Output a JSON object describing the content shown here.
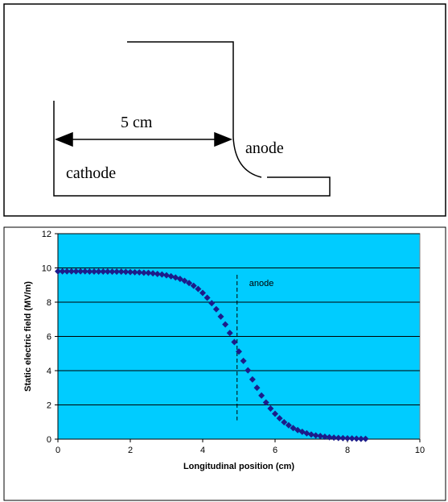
{
  "diagram": {
    "labels": {
      "distance": "5 cm",
      "anode": "anode",
      "cathode": "cathode"
    }
  },
  "chart_data": {
    "type": "scatter",
    "x_label": "Longitudinal position (cm)",
    "y_label": "Static electric field (MV/m)",
    "annotation": {
      "text": "anode",
      "x": 4.95,
      "y_range": [
        1.1,
        9.6
      ]
    },
    "x": [
      0,
      0.125,
      0.25,
      0.375,
      0.5,
      0.625,
      0.75,
      0.875,
      1,
      1.125,
      1.25,
      1.375,
      1.5,
      1.625,
      1.75,
      1.875,
      2,
      2.125,
      2.25,
      2.375,
      2.5,
      2.625,
      2.75,
      2.875,
      3,
      3.125,
      3.25,
      3.375,
      3.5,
      3.625,
      3.75,
      3.875,
      4,
      4.125,
      4.25,
      4.375,
      4.5,
      4.625,
      4.75,
      4.875,
      5,
      5.125,
      5.25,
      5.375,
      5.5,
      5.625,
      5.75,
      5.875,
      6,
      6.125,
      6.25,
      6.375,
      6.5,
      6.625,
      6.75,
      6.875,
      7,
      7.125,
      7.25,
      7.375,
      7.5,
      7.625,
      7.75,
      7.875,
      8,
      8.125,
      8.25,
      8.375,
      8.5
    ],
    "values": [
      9.8,
      9.8,
      9.8,
      9.8,
      9.8,
      9.8,
      9.8,
      9.79,
      9.79,
      9.79,
      9.79,
      9.79,
      9.78,
      9.78,
      9.78,
      9.77,
      9.76,
      9.75,
      9.74,
      9.72,
      9.71,
      9.68,
      9.65,
      9.62,
      9.57,
      9.51,
      9.44,
      9.36,
      9.25,
      9.12,
      8.96,
      8.77,
      8.54,
      8.26,
      7.94,
      7.59,
      7.16,
      6.7,
      6.2,
      5.67,
      5.12,
      4.57,
      4.02,
      3.49,
      3.0,
      2.55,
      2.14,
      1.79,
      1.48,
      1.22,
      0.99,
      0.81,
      0.65,
      0.53,
      0.43,
      0.34,
      0.27,
      0.22,
      0.18,
      0.14,
      0.11,
      0.09,
      0.07,
      0.06,
      0.05,
      0.04,
      0.03,
      0.02,
      0.02
    ],
    "color": "#1c1c8a",
    "plot_background": "#00ccff",
    "xlim": [
      0,
      10
    ],
    "xticks": [
      0,
      2,
      4,
      6,
      8,
      10
    ],
    "ylim": [
      0,
      12
    ],
    "yticks": [
      0,
      2,
      4,
      6,
      8,
      10,
      12
    ],
    "grid": true
  }
}
